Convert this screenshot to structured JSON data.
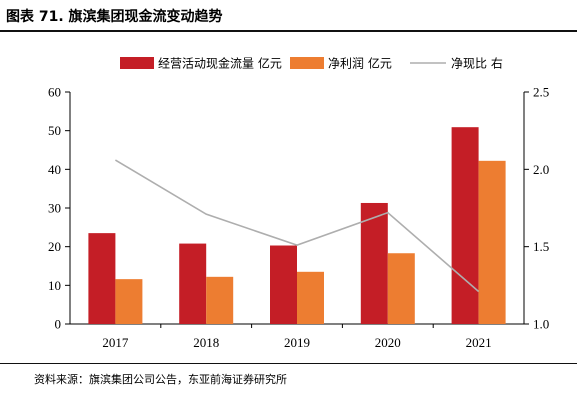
{
  "header": {
    "title": "图表 71. 旗滨集团现金流变动趋势"
  },
  "footer": {
    "source": "资料来源：旗滨集团公司公告，东亚前海证券研究所"
  },
  "colors": {
    "operating_cash_flow": "#C41E26",
    "net_profit": "#ED7D31",
    "ratio_line": "#AEAEAE"
  },
  "chart_data": {
    "type": "bar",
    "categories": [
      "2017",
      "2018",
      "2019",
      "2020",
      "2021"
    ],
    "series": [
      {
        "name": "经营活动现金流量 亿元",
        "kind": "bar",
        "axis": "left",
        "values": [
          23.5,
          20.8,
          20.3,
          31.3,
          50.9
        ]
      },
      {
        "name": "净利润 亿元",
        "kind": "bar",
        "axis": "left",
        "values": [
          11.6,
          12.2,
          13.5,
          18.3,
          42.2
        ]
      },
      {
        "name": "净现比 右",
        "kind": "line",
        "axis": "right",
        "values": [
          2.06,
          1.71,
          1.51,
          1.72,
          1.21
        ]
      }
    ],
    "yleft": {
      "lim": [
        0,
        60
      ],
      "ticks": [
        "0",
        "10",
        "20",
        "30",
        "40",
        "50",
        "60"
      ]
    },
    "yright": {
      "lim": [
        1.0,
        2.5
      ],
      "ticks": [
        "1.0",
        "1.5",
        "2.0",
        "2.5"
      ]
    },
    "grid": false,
    "legend": "top"
  }
}
